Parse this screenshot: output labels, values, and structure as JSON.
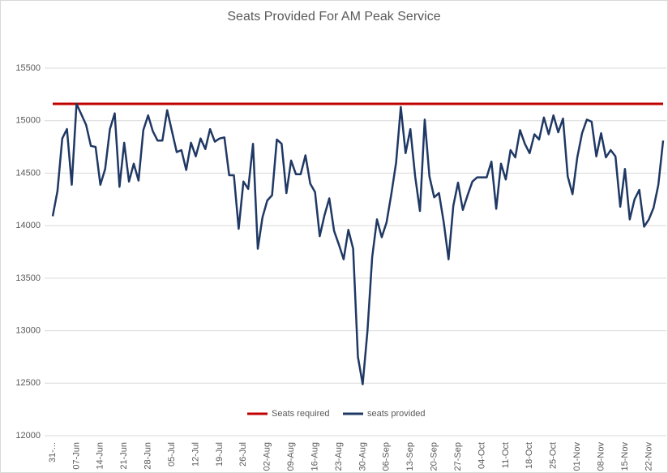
{
  "chart_data": {
    "type": "line",
    "title": "Seats Provided For AM Peak Service",
    "categories": [
      "31-...",
      null,
      null,
      null,
      null,
      "07-Jun",
      null,
      null,
      null,
      null,
      "14-Jun",
      null,
      null,
      null,
      null,
      "21-Jun",
      null,
      null,
      null,
      null,
      "28-Jun",
      null,
      null,
      null,
      null,
      "05-Jul",
      null,
      null,
      null,
      null,
      "12-Jul",
      null,
      null,
      null,
      null,
      "19-Jul",
      null,
      null,
      null,
      null,
      "26-Jul",
      null,
      null,
      null,
      null,
      "02-Aug",
      null,
      null,
      null,
      null,
      "09-Aug",
      null,
      null,
      null,
      null,
      "16-Aug",
      null,
      null,
      null,
      null,
      "23-Aug",
      null,
      null,
      null,
      null,
      "30-Aug",
      null,
      null,
      null,
      null,
      "06-Sep",
      null,
      null,
      null,
      null,
      "13-Sep",
      null,
      null,
      null,
      null,
      "20-Sep",
      null,
      null,
      null,
      null,
      "27-Sep",
      null,
      null,
      null,
      null,
      "04-Oct",
      null,
      null,
      null,
      null,
      "11-Oct",
      null,
      null,
      null,
      null,
      "18-Oct",
      null,
      null,
      null,
      null,
      "25-Oct",
      null,
      null,
      null,
      null,
      "01-Nov",
      null,
      null,
      null,
      null,
      "08-Nov",
      null,
      null,
      null,
      null,
      "15-Nov",
      null,
      null,
      null,
      null,
      "22-Nov",
      null,
      null,
      null
    ],
    "series": [
      {
        "name": "Seats required",
        "color": "#c00000",
        "values": [
          15160,
          15160,
          15160,
          15160,
          15160,
          15160,
          15160,
          15160,
          15160,
          15160,
          15160,
          15160,
          15160,
          15160,
          15160,
          15160,
          15160,
          15160,
          15160,
          15160,
          15160,
          15160,
          15160,
          15160,
          15160,
          15160,
          15160,
          15160,
          15160,
          15160,
          15160,
          15160,
          15160,
          15160,
          15160,
          15160,
          15160,
          15160,
          15160,
          15160,
          15160,
          15160,
          15160,
          15160,
          15160,
          15160,
          15160,
          15160,
          15160,
          15160,
          15160,
          15160,
          15160,
          15160,
          15160,
          15160,
          15160,
          15160,
          15160,
          15160,
          15160,
          15160,
          15160,
          15160,
          15160,
          15160,
          15160,
          15160,
          15160,
          15160,
          15160,
          15160,
          15160,
          15160,
          15160,
          15160,
          15160,
          15160,
          15160,
          15160,
          15160,
          15160,
          15160,
          15160,
          15160,
          15160,
          15160,
          15160,
          15160,
          15160,
          15160,
          15160,
          15160,
          15160,
          15160,
          15160,
          15160,
          15160,
          15160,
          15160,
          15160,
          15160,
          15160,
          15160,
          15160,
          15160,
          15160,
          15160,
          15160,
          15160,
          15160,
          15160,
          15160,
          15160,
          15160,
          15160,
          15160,
          15160,
          15160,
          15160,
          15160,
          15160,
          15160,
          15160,
          15160,
          15160,
          15160,
          15160,
          15160
        ]
      },
      {
        "name": "seats provided",
        "color": "#1f3864",
        "values": [
          14090,
          14330,
          14830,
          14920,
          14390,
          15160,
          15060,
          14960,
          14760,
          14750,
          14390,
          14540,
          14920,
          15070,
          14370,
          14790,
          14420,
          14590,
          14430,
          14910,
          15050,
          14900,
          14810,
          14810,
          15100,
          14900,
          14700,
          14720,
          14530,
          14790,
          14660,
          14830,
          14730,
          14920,
          14800,
          14830,
          14840,
          14480,
          14480,
          13970,
          14420,
          14350,
          14780,
          13780,
          14080,
          14240,
          14290,
          14820,
          14780,
          14310,
          14620,
          14490,
          14490,
          14670,
          14400,
          14320,
          13900,
          14100,
          14260,
          13950,
          13820,
          13680,
          13960,
          13780,
          12750,
          12490,
          13000,
          13700,
          14060,
          13890,
          14030,
          14300,
          14600,
          15130,
          14690,
          14920,
          14470,
          14140,
          15010,
          14470,
          14270,
          14310,
          14030,
          13680,
          14190,
          14410,
          14150,
          14290,
          14420,
          14460,
          14460,
          14460,
          14610,
          14160,
          14590,
          14440,
          14720,
          14650,
          14910,
          14780,
          14690,
          14870,
          14820,
          15030,
          14870,
          15050,
          14890,
          15020,
          14470,
          14300,
          14650,
          14880,
          15010,
          14990,
          14660,
          14880,
          14650,
          14720,
          14660,
          14180,
          14540,
          14060,
          14250,
          14340,
          13990,
          14060,
          14170,
          14390,
          14810
        ]
      }
    ],
    "ylim": [
      12000,
      15500
    ],
    "yticks": [
      12000,
      12500,
      13000,
      13500,
      14000,
      14500,
      15000,
      15500
    ],
    "grid": true,
    "legend": "bottom"
  }
}
